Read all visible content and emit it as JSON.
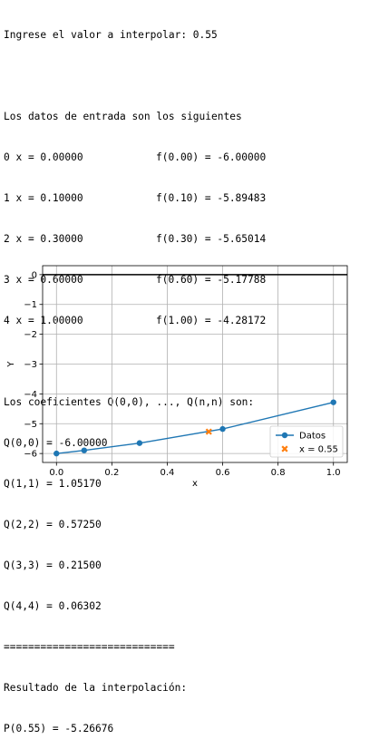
{
  "console": {
    "prompt": "Ingrese el valor a interpolar: 0.55",
    "data_header": "Los datos de entrada son los siguientes",
    "rows": [
      {
        "left": "0 x = 0.00000",
        "right": "f(0.00) = -6.00000"
      },
      {
        "left": "1 x = 0.10000",
        "right": "f(0.10) = -5.89483"
      },
      {
        "left": "2 x = 0.30000",
        "right": "f(0.30) = -5.65014"
      },
      {
        "left": "3 x = 0.60000",
        "right": "f(0.60) = -5.17788"
      },
      {
        "left": "4 x = 1.00000",
        "right": "f(1.00) = -4.28172"
      }
    ],
    "coef_header": "Los coeficientes Q(0,0), ..., Q(n,n) son:",
    "coefs": [
      "Q(0,0) = -6.00000",
      "Q(1,1) = 1.05170",
      "Q(2,2) = 0.57250",
      "Q(3,3) = 0.21500",
      "Q(4,4) = 0.06302"
    ],
    "separator": "============================",
    "result_header": "Resultado de la interpolación:",
    "result": "P(0.55) = -5.26676"
  },
  "chart_data": {
    "type": "line",
    "xlabel": "x",
    "ylabel": "Y",
    "xlim": [
      -0.05,
      1.05
    ],
    "ylim": [
      -6.3,
      0.3
    ],
    "xticks": [
      0.0,
      0.2,
      0.4,
      0.6,
      0.8,
      1.0
    ],
    "xtick_labels": [
      "0.0",
      "0.2",
      "0.4",
      "0.6",
      "0.8",
      "1.0"
    ],
    "yticks": [
      0,
      -1,
      -2,
      -3,
      -4,
      -5,
      -6
    ],
    "ytick_labels": [
      "0",
      "−1",
      "−2",
      "−3",
      "−4",
      "−5",
      "−6"
    ],
    "grid": true,
    "hline_y": 0,
    "legend": "lower-right",
    "series": [
      {
        "name": "Datos",
        "x": [
          0.0,
          0.1,
          0.3,
          0.6,
          1.0
        ],
        "y": [
          -6.0,
          -5.89483,
          -5.65014,
          -5.17788,
          -4.28172
        ],
        "color": "#1f77b4",
        "marker": "circle"
      },
      {
        "name": "x = 0.55",
        "x": [
          0.55
        ],
        "y": [
          -5.26676
        ],
        "color": "#ff7f0e",
        "marker": "x"
      }
    ]
  }
}
